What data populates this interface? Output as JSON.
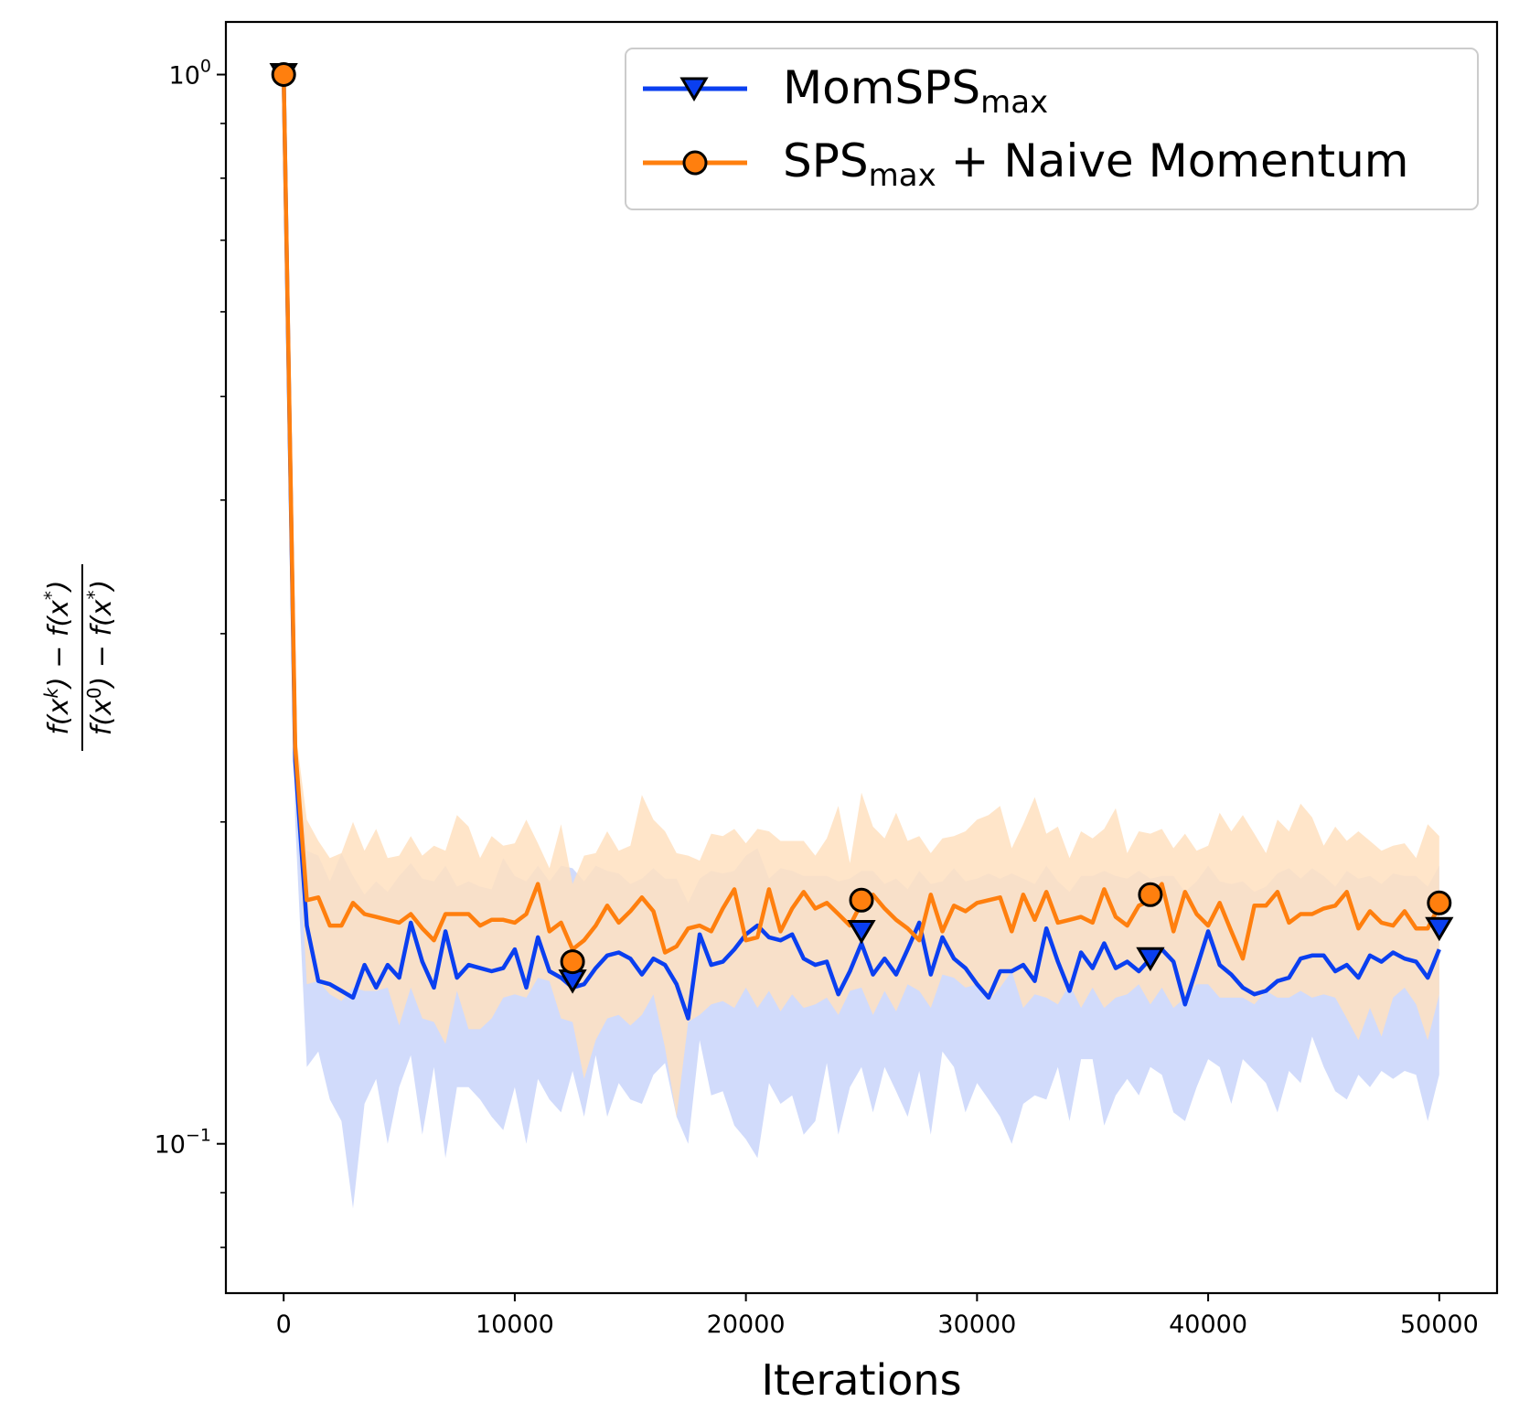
{
  "chart_data": {
    "type": "line",
    "xlabel": "Iterations",
    "ylabel": "(f(x^k) − f(x*)) / (f(x^0) − f(x*))",
    "ylabel_parts": {
      "num_f": "f(x",
      "num_sup": "k",
      "num_mid": ") − f(x",
      "num_star": "*",
      "num_end": ")",
      "den_f": "f(x",
      "den_sup": "0",
      "den_mid": ") − f(x",
      "den_star": "*",
      "den_end": ")"
    },
    "yscale": "log",
    "xlim": [
      -2500,
      52500
    ],
    "ylim": [
      0.0725,
      1.12
    ],
    "x_ticks": [
      0,
      10000,
      20000,
      30000,
      40000,
      50000
    ],
    "x_tick_labels": [
      "0",
      "10000",
      "20000",
      "30000",
      "40000",
      "50000"
    ],
    "y_major_ticks": [
      {
        "value": 1,
        "base": "10",
        "exp": "0"
      },
      {
        "value": 0.1,
        "base": "10",
        "exp": "−1"
      }
    ],
    "y_minor_ticks": [
      0.08,
      0.09,
      0.2,
      0.3,
      0.4,
      0.5,
      0.6,
      0.7,
      0.8,
      0.9
    ],
    "grid": false,
    "legend_position": "top-right",
    "x": [
      0,
      500,
      1000,
      1500,
      2000,
      2500,
      3000,
      3500,
      4000,
      4500,
      5000,
      5500,
      6000,
      6500,
      7000,
      7500,
      8000,
      8500,
      9000,
      9500,
      10000,
      10500,
      11000,
      11500,
      12000,
      12500,
      13000,
      13500,
      14000,
      14500,
      15000,
      15500,
      16000,
      16500,
      17000,
      17500,
      18000,
      18500,
      19000,
      19500,
      20000,
      20500,
      21000,
      21500,
      22000,
      22500,
      23000,
      23500,
      24000,
      24500,
      25000,
      25500,
      26000,
      26500,
      27000,
      27500,
      28000,
      28500,
      29000,
      29500,
      30000,
      30500,
      31000,
      31500,
      32000,
      32500,
      33000,
      33500,
      34000,
      34500,
      35000,
      35500,
      36000,
      36500,
      37000,
      37500,
      38000,
      38500,
      39000,
      39500,
      40000,
      40500,
      41000,
      41500,
      42000,
      42500,
      43000,
      43500,
      44000,
      44500,
      45000,
      45500,
      46000,
      46500,
      47000,
      47500,
      48000,
      48500,
      49000,
      49500,
      50000
    ],
    "series": [
      {
        "name": "MomSPS",
        "name_sub": "max",
        "color": "#0a3ff0",
        "band_color": "#c9d5fa",
        "marker": "triangle-down",
        "values": [
          1.0,
          0.228,
          0.16,
          0.142,
          0.141,
          0.139,
          0.137,
          0.147,
          0.14,
          0.147,
          0.143,
          0.161,
          0.148,
          0.14,
          0.158,
          0.143,
          0.147,
          0.146,
          0.145,
          0.146,
          0.152,
          0.14,
          0.156,
          0.145,
          0.143,
          0.14,
          0.141,
          0.146,
          0.15,
          0.151,
          0.149,
          0.144,
          0.149,
          0.147,
          0.141,
          0.131,
          0.157,
          0.147,
          0.148,
          0.152,
          0.157,
          0.16,
          0.156,
          0.155,
          0.157,
          0.149,
          0.147,
          0.148,
          0.138,
          0.145,
          0.154,
          0.144,
          0.149,
          0.144,
          0.152,
          0.161,
          0.144,
          0.156,
          0.149,
          0.146,
          0.141,
          0.137,
          0.145,
          0.145,
          0.147,
          0.142,
          0.159,
          0.148,
          0.139,
          0.151,
          0.146,
          0.154,
          0.146,
          0.148,
          0.145,
          0.149,
          0.152,
          0.148,
          0.135,
          0.146,
          0.158,
          0.147,
          0.144,
          0.14,
          0.138,
          0.139,
          0.142,
          0.143,
          0.149,
          0.15,
          0.15,
          0.145,
          0.147,
          0.143,
          0.15,
          0.148,
          0.151,
          0.149,
          0.148,
          0.143,
          0.152
        ],
        "lower": [
          1.0,
          0.2,
          0.118,
          0.122,
          0.11,
          0.105,
          0.087,
          0.109,
          0.115,
          0.1,
          0.113,
          0.121,
          0.102,
          0.118,
          0.097,
          0.113,
          0.113,
          0.11,
          0.106,
          0.103,
          0.113,
          0.1,
          0.115,
          0.11,
          0.107,
          0.117,
          0.106,
          0.121,
          0.106,
          0.114,
          0.11,
          0.109,
          0.116,
          0.119,
          0.106,
          0.1,
          0.125,
          0.111,
          0.112,
          0.104,
          0.101,
          0.097,
          0.114,
          0.109,
          0.111,
          0.102,
          0.105,
          0.119,
          0.102,
          0.113,
          0.118,
          0.107,
          0.118,
          0.112,
          0.106,
          0.117,
          0.102,
          0.122,
          0.118,
          0.107,
          0.114,
          0.11,
          0.106,
          0.1,
          0.109,
          0.111,
          0.11,
          0.118,
          0.105,
          0.12,
          0.12,
          0.104,
          0.111,
          0.115,
          0.111,
          0.118,
          0.116,
          0.107,
          0.105,
          0.113,
          0.12,
          0.118,
          0.109,
          0.12,
          0.117,
          0.114,
          0.107,
          0.117,
          0.114,
          0.126,
          0.118,
          0.112,
          0.11,
          0.116,
          0.113,
          0.117,
          0.115,
          0.117,
          0.116,
          0.105,
          0.116
        ],
        "upper": [
          1.0,
          0.245,
          0.188,
          0.186,
          0.176,
          0.187,
          0.178,
          0.171,
          0.176,
          0.172,
          0.178,
          0.183,
          0.177,
          0.176,
          0.182,
          0.174,
          0.176,
          0.174,
          0.173,
          0.185,
          0.178,
          0.176,
          0.182,
          0.176,
          0.182,
          0.181,
          0.176,
          0.182,
          0.18,
          0.179,
          0.175,
          0.177,
          0.181,
          0.177,
          0.177,
          0.168,
          0.177,
          0.18,
          0.179,
          0.18,
          0.186,
          0.189,
          0.177,
          0.181,
          0.18,
          0.178,
          0.178,
          0.178,
          0.176,
          0.177,
          0.18,
          0.18,
          0.175,
          0.177,
          0.173,
          0.18,
          0.175,
          0.176,
          0.181,
          0.176,
          0.177,
          0.179,
          0.177,
          0.179,
          0.177,
          0.175,
          0.182,
          0.176,
          0.172,
          0.178,
          0.178,
          0.18,
          0.178,
          0.177,
          0.18,
          0.177,
          0.178,
          0.178,
          0.172,
          0.176,
          0.182,
          0.176,
          0.175,
          0.176,
          0.172,
          0.174,
          0.179,
          0.181,
          0.177,
          0.181,
          0.178,
          0.174,
          0.18,
          0.177,
          0.178,
          0.175,
          0.179,
          0.178,
          0.178,
          0.174,
          0.182
        ]
      },
      {
        "name": "SPS",
        "name_sub": "max",
        "name_suffix": " + Naive Momentum",
        "color": "#ff7f0e",
        "band_color": "#ffe0c0",
        "marker": "circle",
        "values": [
          1.0,
          0.235,
          0.169,
          0.17,
          0.16,
          0.16,
          0.168,
          0.164,
          0.163,
          0.162,
          0.161,
          0.164,
          0.159,
          0.155,
          0.164,
          0.164,
          0.164,
          0.16,
          0.162,
          0.162,
          0.161,
          0.164,
          0.175,
          0.158,
          0.161,
          0.152,
          0.155,
          0.16,
          0.167,
          0.161,
          0.165,
          0.17,
          0.165,
          0.151,
          0.153,
          0.159,
          0.16,
          0.158,
          0.166,
          0.173,
          0.155,
          0.156,
          0.173,
          0.158,
          0.166,
          0.172,
          0.166,
          0.168,
          0.164,
          0.16,
          0.168,
          0.171,
          0.166,
          0.162,
          0.159,
          0.155,
          0.171,
          0.158,
          0.167,
          0.165,
          0.168,
          0.169,
          0.17,
          0.158,
          0.171,
          0.162,
          0.172,
          0.161,
          0.162,
          0.163,
          0.161,
          0.173,
          0.163,
          0.16,
          0.167,
          0.169,
          0.175,
          0.158,
          0.172,
          0.164,
          0.16,
          0.168,
          0.158,
          0.149,
          0.167,
          0.167,
          0.172,
          0.161,
          0.164,
          0.164,
          0.166,
          0.167,
          0.172,
          0.159,
          0.165,
          0.161,
          0.16,
          0.165,
          0.159,
          0.159,
          0.167
        ],
        "lower": [
          1.0,
          0.224,
          0.141,
          0.142,
          0.138,
          0.136,
          0.14,
          0.139,
          0.139,
          0.14,
          0.129,
          0.14,
          0.131,
          0.13,
          0.124,
          0.139,
          0.128,
          0.128,
          0.131,
          0.137,
          0.138,
          0.137,
          0.143,
          0.142,
          0.131,
          0.13,
          0.115,
          0.125,
          0.131,
          0.132,
          0.129,
          0.132,
          0.138,
          0.123,
          0.106,
          0.13,
          0.132,
          0.135,
          0.136,
          0.134,
          0.14,
          0.134,
          0.139,
          0.133,
          0.138,
          0.134,
          0.135,
          0.137,
          0.132,
          0.139,
          0.14,
          0.132,
          0.139,
          0.133,
          0.141,
          0.139,
          0.134,
          0.144,
          0.143,
          0.14,
          0.141,
          0.136,
          0.14,
          0.145,
          0.134,
          0.138,
          0.137,
          0.135,
          0.141,
          0.134,
          0.14,
          0.134,
          0.137,
          0.138,
          0.141,
          0.135,
          0.14,
          0.134,
          0.137,
          0.141,
          0.141,
          0.137,
          0.137,
          0.137,
          0.135,
          0.139,
          0.137,
          0.137,
          0.139,
          0.137,
          0.138,
          0.137,
          0.131,
          0.125,
          0.134,
          0.126,
          0.137,
          0.14,
          0.135,
          0.125,
          0.138
        ],
        "upper": [
          1.0,
          0.245,
          0.201,
          0.192,
          0.185,
          0.187,
          0.2,
          0.188,
          0.197,
          0.185,
          0.186,
          0.194,
          0.186,
          0.19,
          0.188,
          0.203,
          0.198,
          0.185,
          0.194,
          0.19,
          0.191,
          0.201,
          0.191,
          0.181,
          0.199,
          0.175,
          0.186,
          0.187,
          0.196,
          0.188,
          0.19,
          0.212,
          0.201,
          0.196,
          0.187,
          0.186,
          0.184,
          0.195,
          0.194,
          0.197,
          0.191,
          0.197,
          0.196,
          0.192,
          0.192,
          0.192,
          0.186,
          0.193,
          0.207,
          0.183,
          0.213,
          0.198,
          0.193,
          0.204,
          0.192,
          0.194,
          0.187,
          0.193,
          0.194,
          0.196,
          0.201,
          0.203,
          0.207,
          0.189,
          0.199,
          0.211,
          0.195,
          0.198,
          0.185,
          0.196,
          0.193,
          0.197,
          0.206,
          0.187,
          0.196,
          0.195,
          0.197,
          0.189,
          0.195,
          0.188,
          0.19,
          0.204,
          0.196,
          0.203,
          0.195,
          0.187,
          0.201,
          0.196,
          0.208,
          0.202,
          0.19,
          0.198,
          0.192,
          0.196,
          0.192,
          0.188,
          0.19,
          0.191,
          0.185,
          0.199,
          0.194
        ]
      }
    ],
    "marker_x": [
      0,
      12500,
      25000,
      37500,
      50000
    ],
    "marker_values": [
      [
        1.0,
        0.142,
        0.158,
        0.149,
        0.159
      ],
      [
        1.0,
        0.148,
        0.169,
        0.171,
        0.168
      ]
    ]
  }
}
